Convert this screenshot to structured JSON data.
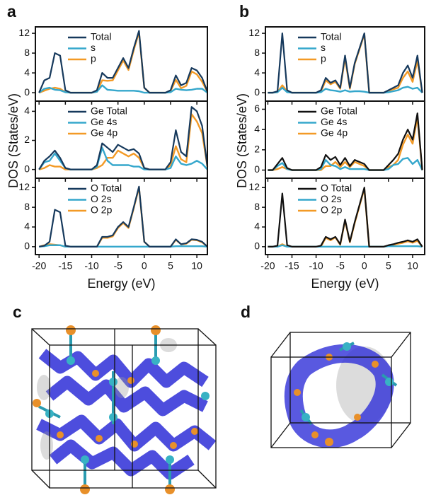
{
  "panel_labels": [
    "a",
    "b",
    "c",
    "d"
  ],
  "chart_data": [
    {
      "type": "line",
      "xlim": [
        -20.7,
        12
      ],
      "ylim": [
        -1.7,
        13.3
      ],
      "yticks": [
        0,
        4,
        8,
        12
      ],
      "xticks": [
        -20,
        -15,
        -10,
        -5,
        0,
        5,
        10
      ],
      "xtick_labels": false,
      "legend": "upper left",
      "x": [
        -20,
        -19,
        -18,
        -17,
        -16,
        -15,
        -14,
        -13,
        -12,
        -11,
        -10,
        -9,
        -8,
        -7,
        -6,
        -5,
        -4,
        -3,
        -2,
        -1,
        0,
        1,
        2,
        3,
        4,
        5,
        6,
        7,
        8,
        9,
        10,
        11,
        12
      ],
      "series": [
        {
          "name": "Total",
          "color": "#16395c",
          "values": [
            0,
            2.5,
            3,
            8,
            7.5,
            0.5,
            0,
            0,
            0,
            0,
            0,
            0.5,
            4,
            3,
            3,
            5,
            7,
            5,
            9,
            12.5,
            1,
            0,
            0,
            0,
            0,
            0.5,
            3.5,
            1.5,
            2,
            5,
            4.5,
            3,
            0.2
          ]
        },
        {
          "name": "s",
          "color": "#35a7cc",
          "values": [
            0,
            0.8,
            1,
            0.6,
            0.5,
            0.1,
            0,
            0,
            0,
            0,
            0,
            0.2,
            1.5,
            0.6,
            0.5,
            0.4,
            0.4,
            0.4,
            0.4,
            0.3,
            0,
            0,
            0,
            0,
            0,
            0.1,
            0.8,
            0.6,
            0.5,
            0.6,
            0.8,
            0.8,
            0
          ]
        },
        {
          "name": "p",
          "color": "#f39a26",
          "values": [
            0,
            0.4,
            0.8,
            1,
            0.8,
            0.1,
            0,
            0,
            0,
            0,
            0,
            0.2,
            2.5,
            2.4,
            2.5,
            4.5,
            6.5,
            4.6,
            8.6,
            12.2,
            1,
            0,
            0,
            0,
            0,
            0.3,
            2.6,
            0.9,
            1.4,
            4.3,
            3.7,
            2.2,
            0.2
          ]
        }
      ]
    },
    {
      "type": "line",
      "xlim": [
        -20.7,
        12
      ],
      "ylim": [
        -0.6,
        4.7
      ],
      "yticks": [
        0,
        2,
        4
      ],
      "xticks": [
        -20,
        -15,
        -10,
        -5,
        0,
        5,
        10
      ],
      "xtick_labels": false,
      "legend": "upper left",
      "ylabel": "DOS (States/eV)",
      "x": [
        -20,
        -19,
        -18,
        -17,
        -16,
        -15,
        -14,
        -13,
        -12,
        -11,
        -10,
        -9,
        -8,
        -7,
        -6,
        -5,
        -4,
        -3,
        -2,
        -1,
        0,
        1,
        2,
        3,
        4,
        5,
        6,
        7,
        8,
        9,
        10,
        11,
        12
      ],
      "series": [
        {
          "name": "Ge Total",
          "color": "#16395c",
          "values": [
            0,
            0.6,
            0.9,
            1.3,
            0.8,
            0.1,
            0,
            0,
            0,
            0,
            0,
            0.3,
            1.8,
            1.5,
            1.2,
            1.7,
            1.5,
            1.3,
            1.4,
            1.1,
            0.1,
            0,
            0,
            0,
            0,
            0.5,
            2.7,
            1.2,
            0.9,
            4.3,
            4,
            3,
            0.2
          ]
        },
        {
          "name": "Ge 4s",
          "color": "#35a7cc",
          "values": [
            0,
            0.5,
            0.6,
            1.1,
            0.6,
            0.1,
            0,
            0,
            0,
            0,
            0,
            0.2,
            1.5,
            0.6,
            0.3,
            0.3,
            0.3,
            0.3,
            0.2,
            0.2,
            0,
            0,
            0,
            0,
            0,
            0.1,
            0.9,
            0.4,
            0.3,
            0.4,
            0.6,
            0.4,
            0
          ]
        },
        {
          "name": "Ge 4p",
          "color": "#f39a26",
          "values": [
            0,
            0.1,
            0.3,
            0.2,
            0.2,
            0,
            0,
            0,
            0,
            0,
            0,
            0.1,
            0.3,
            0.8,
            0.8,
            1.3,
            1.1,
            0.9,
            1.1,
            0.8,
            0.1,
            0,
            0,
            0,
            0,
            0.3,
            1.6,
            0.7,
            0.5,
            3.8,
            3.3,
            2.5,
            0.2
          ]
        }
      ]
    },
    {
      "type": "line",
      "xlim": [
        -20.7,
        12
      ],
      "ylim": [
        -1.6,
        13.9
      ],
      "yticks": [
        0,
        4,
        8,
        12
      ],
      "xticks": [
        -20,
        -15,
        -10,
        -5,
        0,
        5,
        10
      ],
      "legend": "upper left",
      "xlabel": "Energy (eV)",
      "x": [
        -20,
        -19,
        -18,
        -17,
        -16,
        -15,
        -14,
        -13,
        -12,
        -11,
        -10,
        -9,
        -8,
        -7,
        -6,
        -5,
        -4,
        -3,
        -2,
        -1,
        0,
        1,
        2,
        3,
        4,
        5,
        6,
        7,
        8,
        9,
        10,
        11,
        12
      ],
      "series": [
        {
          "name": "O Total",
          "color": "#16395c",
          "values": [
            0,
            0.2,
            1,
            7.5,
            7,
            0.2,
            0,
            0,
            0,
            0,
            0,
            0,
            2,
            2,
            2.3,
            4,
            5,
            4,
            8,
            12.2,
            1,
            0,
            0,
            0,
            0,
            0,
            1.5,
            0.5,
            0.7,
            1.5,
            1.4,
            1,
            0
          ]
        },
        {
          "name": "O 2s",
          "color": "#35a7cc",
          "values": [
            0,
            0.1,
            0.3,
            0.3,
            0.3,
            0,
            0,
            0,
            0,
            0,
            0,
            0,
            0,
            0,
            0,
            0,
            0,
            0,
            0,
            0,
            0,
            0,
            0,
            0,
            0,
            0,
            0.1,
            0.1,
            0.1,
            0.1,
            0.1,
            0.1,
            0
          ]
        },
        {
          "name": "O 2p",
          "color": "#f39a26",
          "values": [
            0,
            0.3,
            0.5,
            0.4,
            0.3,
            0,
            0,
            0,
            0,
            0,
            0,
            0,
            1.8,
            1.8,
            2.1,
            3.8,
            4.8,
            3.8,
            7.8,
            12,
            1,
            0,
            0,
            0,
            0,
            0,
            1.4,
            0.5,
            0.6,
            1.4,
            1.3,
            0.9,
            0
          ]
        }
      ]
    },
    {
      "type": "line",
      "xlim": [
        -20.5,
        12.5
      ],
      "ylim": [
        -1.7,
        13.3
      ],
      "yticks": [
        0,
        4,
        8,
        12
      ],
      "xticks": [
        -20,
        -15,
        -10,
        -5,
        0,
        5,
        10
      ],
      "xtick_labels": false,
      "legend": "upper left",
      "x": [
        -20,
        -19,
        -18,
        -17,
        -16,
        -15,
        -14,
        -13,
        -12,
        -11,
        -10,
        -9,
        -8,
        -7,
        -6,
        -5,
        -4,
        -3,
        -2,
        -1,
        0,
        1,
        2,
        3,
        4,
        5,
        6,
        7,
        8,
        9,
        10,
        11,
        12
      ],
      "series": [
        {
          "name": "Total",
          "color": "#16395c",
          "values": [
            0,
            0,
            0.3,
            12,
            0.5,
            0,
            0,
            0,
            0,
            0,
            0,
            0.5,
            3,
            2,
            2.5,
            1,
            7.5,
            1,
            6,
            9,
            12,
            0,
            0,
            0,
            0,
            0.5,
            1,
            1.5,
            4,
            5.5,
            3,
            7.5,
            0
          ]
        },
        {
          "name": "s",
          "color": "#35a7cc",
          "values": [
            0,
            0,
            0.1,
            1,
            0.1,
            0,
            0,
            0,
            0,
            0,
            0,
            0.1,
            0.8,
            0.5,
            0.4,
            0.2,
            0.5,
            0.2,
            0.3,
            0.3,
            0.2,
            0,
            0,
            0,
            0,
            0.1,
            0.3,
            0.5,
            1,
            1.2,
            0.8,
            1,
            0
          ]
        },
        {
          "name": "p",
          "color": "#f39a26",
          "values": [
            0,
            0,
            0.1,
            1.5,
            0.3,
            0,
            0,
            0,
            0,
            0,
            0,
            0.2,
            2.5,
            1.7,
            2.2,
            0.8,
            7,
            0.8,
            5.8,
            8.8,
            11.8,
            0,
            0,
            0,
            0,
            0.4,
            0.7,
            1,
            3,
            4.3,
            2.2,
            6.5,
            0
          ]
        }
      ]
    },
    {
      "type": "line",
      "xlim": [
        -20.5,
        12.5
      ],
      "ylim": [
        -0.8,
        6.8
      ],
      "yticks": [
        0,
        2,
        4,
        6
      ],
      "xticks": [
        -20,
        -15,
        -10,
        -5,
        0,
        5,
        10
      ],
      "xtick_labels": false,
      "legend": "upper left",
      "ylabel": "DOS (States/eV)",
      "x": [
        -20,
        -19,
        -18,
        -17,
        -16,
        -15,
        -14,
        -13,
        -12,
        -11,
        -10,
        -9,
        -8,
        -7,
        -6,
        -5,
        -4,
        -3,
        -2,
        -1,
        0,
        1,
        2,
        3,
        4,
        5,
        6,
        7,
        8,
        9,
        10,
        11,
        12
      ],
      "series": [
        {
          "name": "Ge Total",
          "color": "#111111",
          "values": [
            0,
            0,
            0.6,
            1.2,
            0.2,
            0,
            0,
            0,
            0,
            0,
            0,
            0.3,
            1.5,
            1,
            1.3,
            0.5,
            1.2,
            0.4,
            1,
            0.8,
            0.6,
            0,
            0,
            0,
            0,
            0.5,
            1,
            1.6,
            3,
            4,
            3,
            5.6,
            0
          ]
        },
        {
          "name": "Ge 4s",
          "color": "#35a7cc",
          "values": [
            0,
            0,
            0.4,
            0.7,
            0.1,
            0,
            0,
            0,
            0,
            0,
            0,
            0.1,
            1,
            0.5,
            0.4,
            0.1,
            0.3,
            0.1,
            0.1,
            0.1,
            0.1,
            0,
            0,
            0,
            0,
            0.1,
            0.5,
            0.6,
            1.1,
            1.2,
            0.6,
            1,
            0
          ]
        },
        {
          "name": "Ge 4p",
          "color": "#f39a26",
          "values": [
            0,
            0,
            0.1,
            0.3,
            0.1,
            0,
            0,
            0,
            0,
            0,
            0,
            0,
            0.4,
            0.4,
            0.8,
            0.3,
            0.8,
            0.3,
            0.8,
            0.6,
            0.4,
            0,
            0,
            0,
            0,
            0.3,
            0.5,
            1,
            2.5,
            3.5,
            2.6,
            5.2,
            0
          ]
        }
      ]
    },
    {
      "type": "line",
      "xlim": [
        -20.5,
        12.5
      ],
      "ylim": [
        -1.6,
        13.9
      ],
      "yticks": [
        0,
        4,
        8,
        12
      ],
      "xticks": [
        -20,
        -15,
        -10,
        -5,
        0,
        5,
        10
      ],
      "legend": "upper left",
      "xlabel": "Energy (eV)",
      "x": [
        -20,
        -19,
        -18,
        -17,
        -16,
        -15,
        -14,
        -13,
        -12,
        -11,
        -10,
        -9,
        -8,
        -7,
        -6,
        -5,
        -4,
        -3,
        -2,
        -1,
        0,
        1,
        2,
        3,
        4,
        5,
        6,
        7,
        8,
        9,
        10,
        11,
        12
      ],
      "series": [
        {
          "name": "O Total",
          "color": "#111111",
          "values": [
            0,
            0,
            0.2,
            10.8,
            0.3,
            0,
            0,
            0,
            0,
            0,
            0,
            0.2,
            2,
            1.5,
            2,
            0.5,
            5.5,
            1,
            5,
            8.5,
            12,
            0,
            0,
            0,
            0,
            0.3,
            0.5,
            0.8,
            1,
            1.3,
            1,
            1.5,
            0
          ]
        },
        {
          "name": "O 2s",
          "color": "#35a7cc",
          "values": [
            0,
            0,
            0,
            0.3,
            0,
            0,
            0,
            0,
            0,
            0,
            0,
            0,
            0,
            0,
            0,
            0,
            0,
            0,
            0,
            0,
            0,
            0,
            0,
            0,
            0,
            0.1,
            0.1,
            0.1,
            0.1,
            0.1,
            0.1,
            0.1,
            0
          ]
        },
        {
          "name": "O 2p",
          "color": "#f39a26",
          "values": [
            0,
            0,
            0,
            0.5,
            0,
            0,
            0,
            0,
            0,
            0,
            0,
            0,
            1.8,
            1.3,
            1.9,
            0.4,
            5.3,
            0.9,
            4.8,
            8.3,
            11.8,
            0,
            0,
            0,
            0,
            0.2,
            0.4,
            0.6,
            0.8,
            1.1,
            0.8,
            1.2,
            0
          ]
        }
      ]
    }
  ]
}
